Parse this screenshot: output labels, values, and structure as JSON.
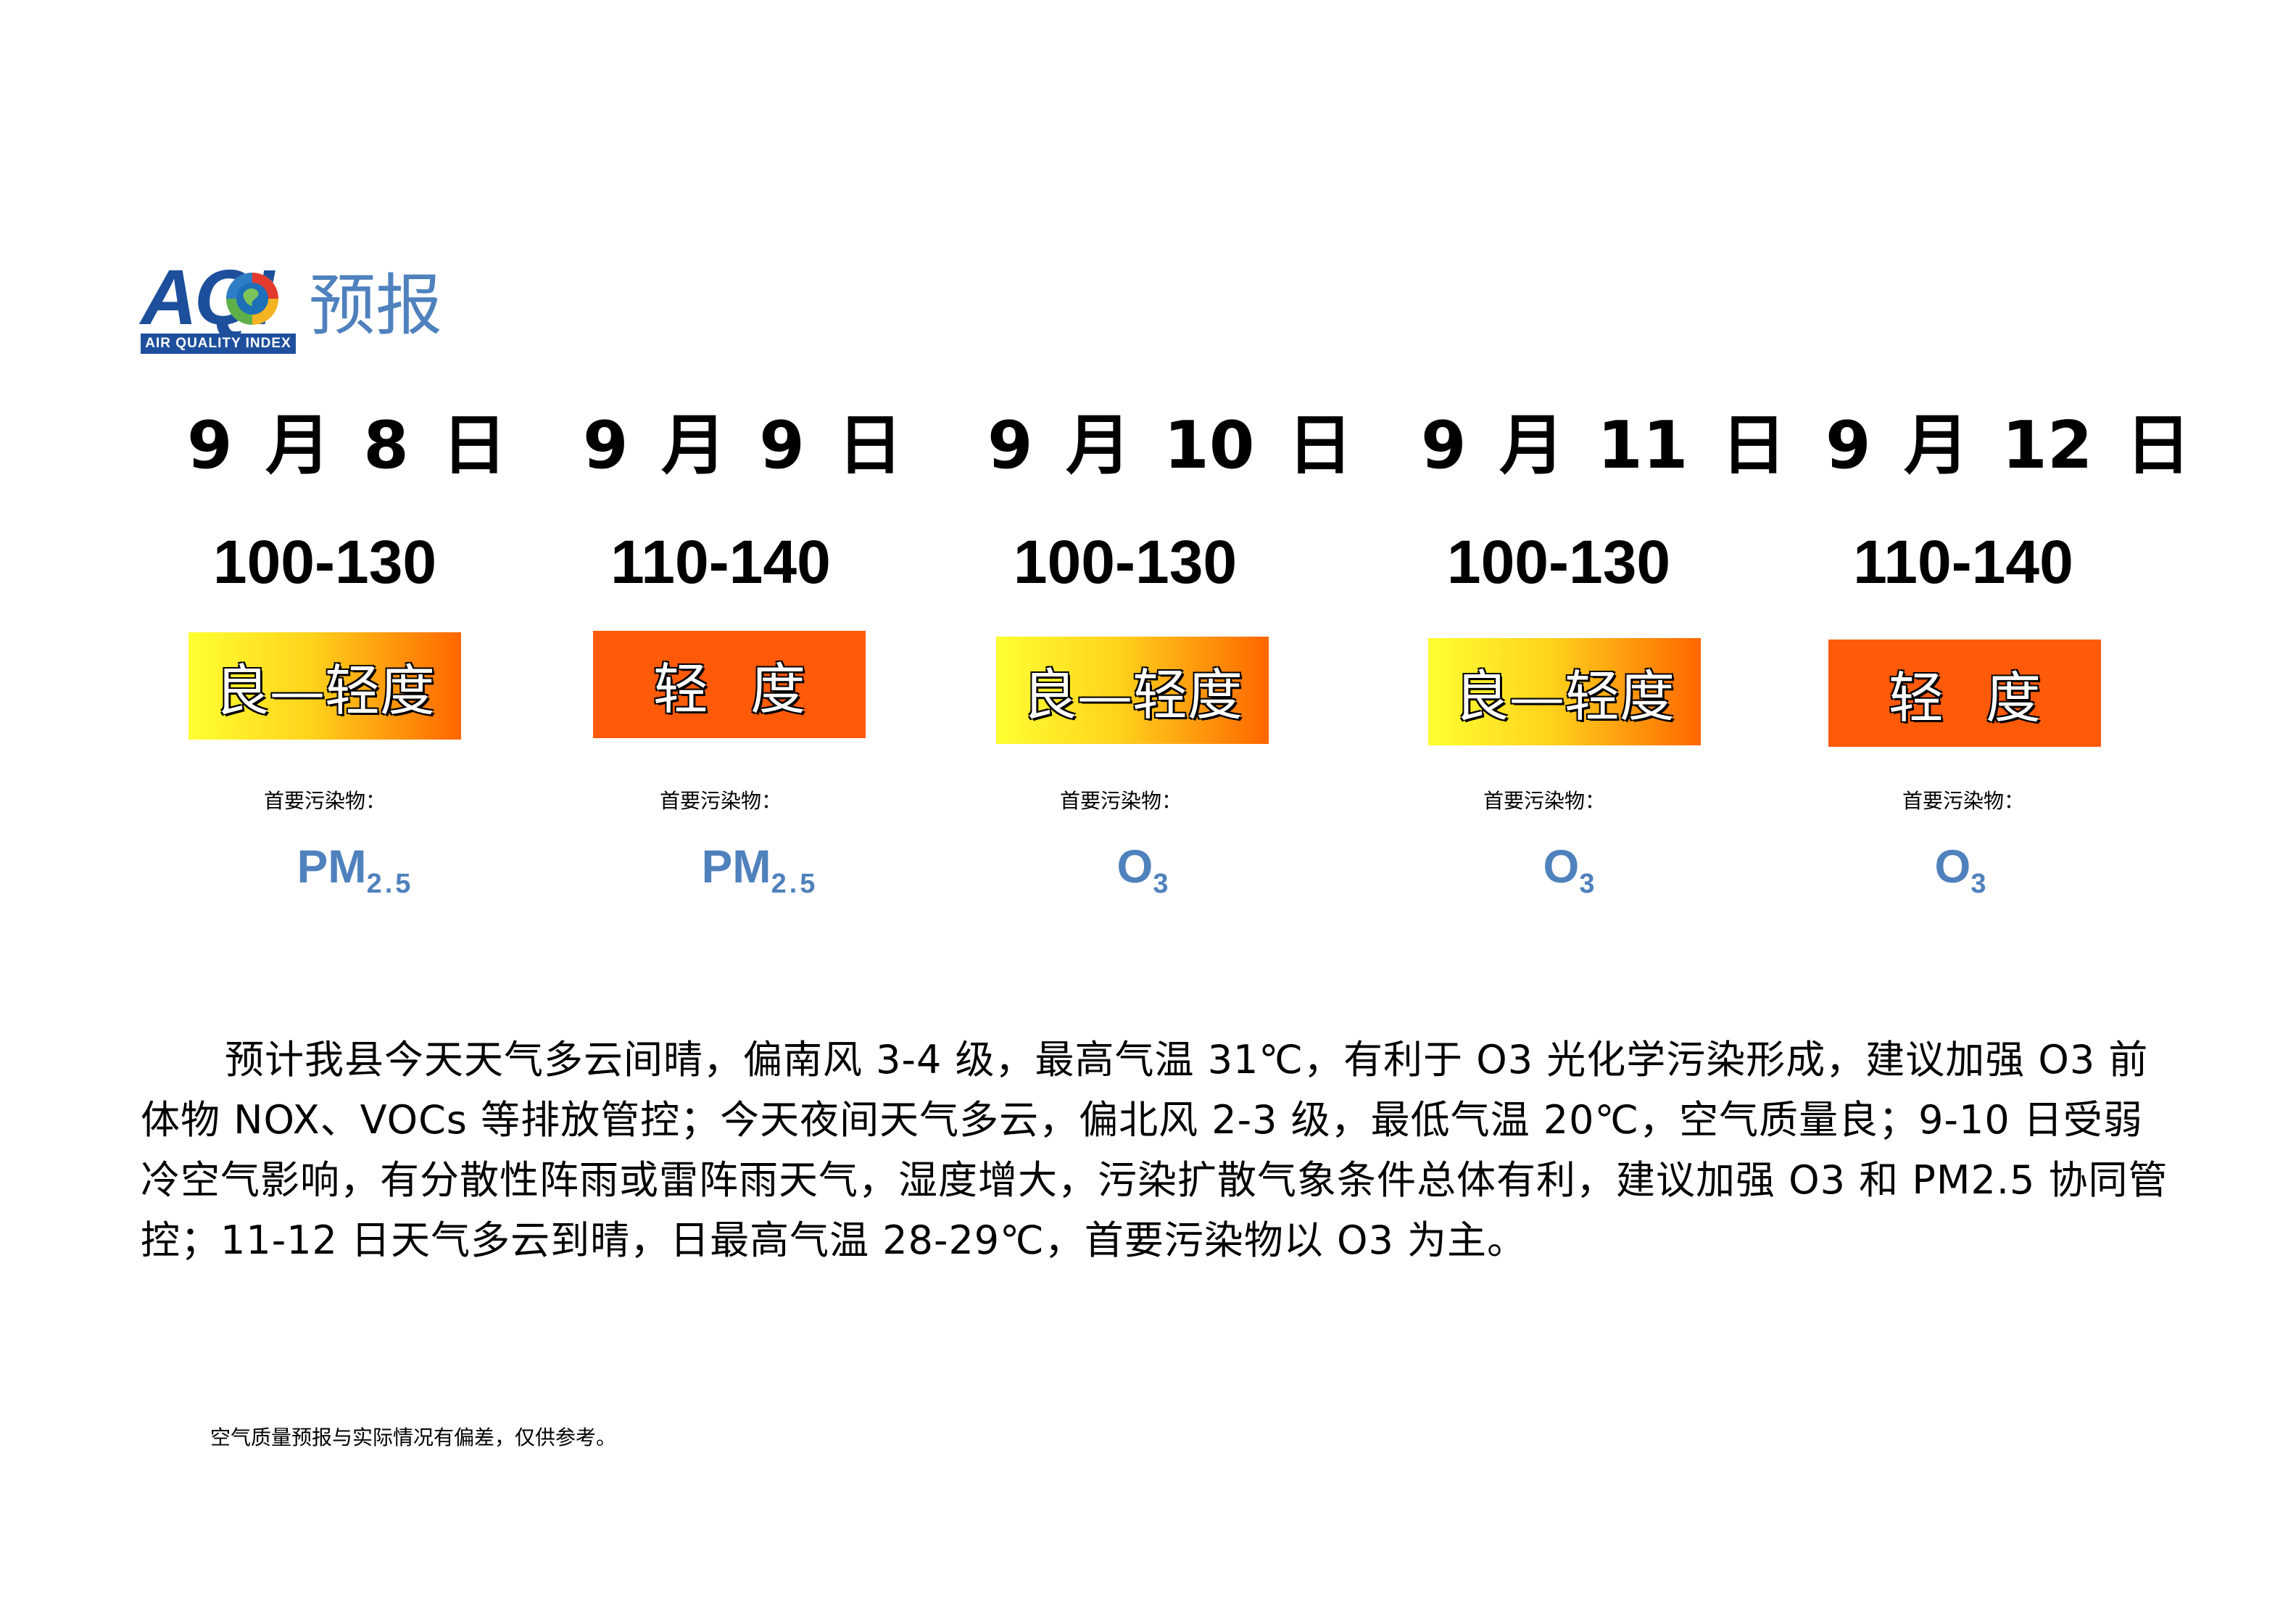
{
  "logo": {
    "text": "AQI",
    "subtitle": "AIR QUALITY INDEX",
    "title": "预报"
  },
  "forecasts": [
    {
      "date": "9 月 8 日",
      "aqi": "100-130",
      "level": "良—轻度",
      "pollutant_label": "首要污染物：",
      "pollutant_main": "PM",
      "pollutant_sub": "2.5"
    },
    {
      "date": "9 月 9 日",
      "aqi": "110-140",
      "level": "轻 度",
      "pollutant_label": "首要污染物：",
      "pollutant_main": "PM",
      "pollutant_sub": "2.5"
    },
    {
      "date": "9 月 10 日",
      "aqi": "100-130",
      "level": "良—轻度",
      "pollutant_label": "首要污染物：",
      "pollutant_main": "O",
      "pollutant_sub": "3"
    },
    {
      "date": "9 月 11 日",
      "aqi": "100-130",
      "level": "良—轻度",
      "pollutant_label": "首要污染物：",
      "pollutant_main": "O",
      "pollutant_sub": "3"
    },
    {
      "date": "9 月 12 日",
      "aqi": "110-140",
      "level": "轻 度",
      "pollutant_label": "首要污染物：",
      "pollutant_main": "O",
      "pollutant_sub": "3"
    }
  ],
  "level_colors": {
    "good_to_light": [
      "#ffff33",
      "#ff6600"
    ],
    "light": "#ff5a08"
  },
  "description": "预计我县今天天气多云间晴，偏南风 3-4 级，最高气温 31℃，有利于 O3 光化学污染形成，建议加强 O3 前体物 NOX、VOCs 等排放管控；今天夜间天气多云，偏北风 2-3 级，最低气温 20℃，空气质量良；9-10 日受弱冷空气影响，有分散性阵雨或雷阵雨天气，湿度增大，污染扩散气象条件总体有利，建议加强 O3 和 PM2.5 协同管控；11-12 日天气多云到晴，日最高气温 28-29℃，首要污染物以 O3 为主。",
  "note": "空气质量预报与实际情况有偏差，仅供参考。"
}
